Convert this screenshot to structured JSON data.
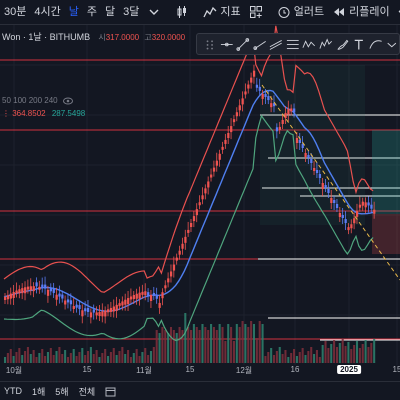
{
  "toolbar": {
    "intervals": [
      "30분",
      "4시간",
      "날",
      "주",
      "달",
      "3달"
    ],
    "active_interval": "날",
    "indicators_label": "지표",
    "alerts_label": "얼러트",
    "replay_label": "리플레이"
  },
  "legend": {
    "symbol": "Won · 1날 · BITHUMB",
    "open_label": "시",
    "open_value": "317.0000",
    "high_label": "고",
    "high_value": "320.0000",
    "ma_periods": "50 100 200 240",
    "bb_value_1": "364.8502",
    "bb_value_2": "287.5498"
  },
  "xaxis": {
    "labels": [
      "10월",
      "15",
      "11월",
      "15",
      "12월",
      "16",
      "2025",
      "15"
    ],
    "highlighted": "2025"
  },
  "bottombar": {
    "ranges": [
      "YTD",
      "1해",
      "5해",
      "전체"
    ]
  },
  "colors": {
    "background": "#131722",
    "up": "#ef5350",
    "down": "#5b7cf5",
    "basis": "#4f7ff0",
    "upper": "#e8514f",
    "lower": "#4fa57e",
    "hline": "#f23645",
    "white_line": "#ffffff",
    "trend": "#e8b84a",
    "accent": "#2962ff"
  },
  "chart_data": {
    "type": "candlestick",
    "overlays": [
      "bollinger_bands",
      "horizontal_levels",
      "descending_trendline",
      "volume"
    ],
    "note_values": {
      "bb_upper": 364.8502,
      "bb_lower": 287.5498
    }
  }
}
